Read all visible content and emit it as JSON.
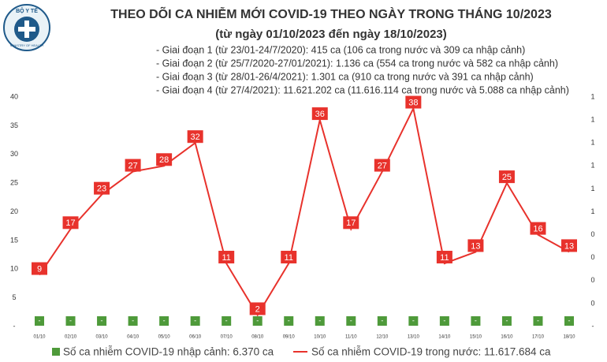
{
  "logo": {
    "top": "BỘ Y TẾ",
    "bottom": "MINISTRY OF HEALTH"
  },
  "chart_data": {
    "type": "line",
    "title": "THEO DÕI CA NHIỄM MỚI COVID-19 THEO NGÀY TRONG THÁNG 10/2023",
    "subtitle": "(từ ngày 01/10/2023 đến ngày 18/10/2023)",
    "annotations": [
      "- Giai đoạn 1 (từ 23/01-24/7/2020): 415 ca (106 ca trong nước và 309 ca nhập cảnh)",
      "- Giai đoạn 2 (từ 25/7/2020-27/01/2021): 1.136 ca (554 ca trong nước và 582 ca nhập cảnh)",
      "- Giai đoạn 3 (từ 28/01-26/4/2021): 1.301 ca (910 ca trong nước và 391 ca nhập cảnh)",
      "- Giai đoạn 4 (từ 27/4/2021): 11.621.202 ca (11.616.114 ca trong nước và 5.088 ca nhập cảnh)"
    ],
    "categories": [
      "01/10",
      "02/10",
      "03/10",
      "04/10",
      "05/10",
      "06/10",
      "07/10",
      "08/10",
      "09/10",
      "10/10",
      "11/10",
      "12/10",
      "13/10",
      "14/10",
      "15/10",
      "16/10",
      "17/10",
      "18/10"
    ],
    "series": [
      {
        "name": "Số ca nhiễm COVID-19 nhập cảnh: 6.370 ca",
        "type": "bar",
        "axis": "y2",
        "color": "#4e9a3a",
        "values": [
          0,
          0,
          0,
          0,
          0,
          0,
          0,
          0,
          0,
          0,
          0,
          0,
          0,
          0,
          0,
          0,
          0,
          0
        ],
        "value_labels": [
          "-",
          "-",
          "-",
          "-",
          "-",
          "-",
          "-",
          "-",
          "-",
          "-",
          "-",
          "-",
          "-",
          "-",
          "-",
          "-",
          "-",
          "-"
        ]
      },
      {
        "name": "Số ca nhiễm COVID-19 trong nước: 11.617.684 ca",
        "type": "line",
        "color": "#e8322c",
        "values": [
          9,
          17,
          23,
          27,
          28,
          32,
          11,
          2,
          11,
          36,
          17,
          27,
          38,
          11,
          13,
          25,
          16,
          13
        ]
      }
    ],
    "ylim": [
      0,
      40
    ],
    "yticks": [
      {
        "value": 0,
        "label": "-"
      },
      5,
      10,
      15,
      20,
      25,
      30,
      35,
      40
    ],
    "y2lim": [
      0,
      1
    ],
    "y2ticks": [
      {
        "value": 0,
        "label": "-"
      },
      {
        "value": 0.1,
        "label": "0"
      },
      {
        "value": 0.2,
        "label": "0"
      },
      {
        "value": 0.3,
        "label": "0"
      },
      {
        "value": 0.4,
        "label": "0"
      },
      {
        "value": 0.5,
        "label": "1"
      },
      {
        "value": 0.6,
        "label": "1"
      },
      {
        "value": 0.7,
        "label": "1"
      },
      {
        "value": 0.8,
        "label": "1"
      },
      {
        "value": 0.9,
        "label": "1"
      },
      {
        "value": 1,
        "label": "1"
      }
    ],
    "grid": false,
    "legend": "bottom"
  }
}
